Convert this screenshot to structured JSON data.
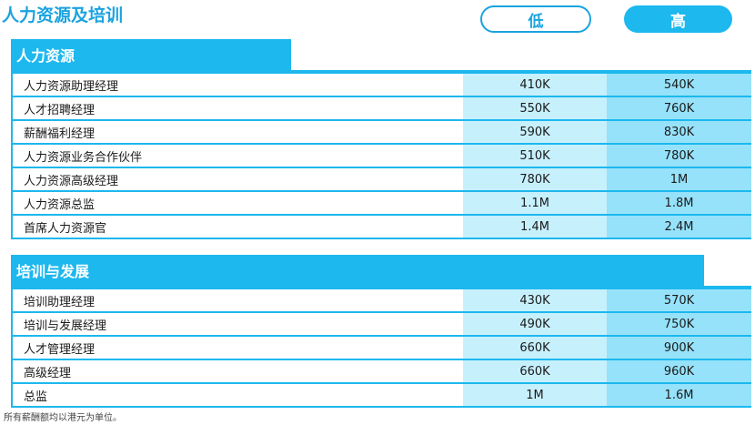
{
  "title": "人力资源及培训",
  "columns": {
    "low": "低",
    "high": "高"
  },
  "sections": [
    {
      "title": "人力资源",
      "rows": [
        {
          "role": "人力资源助理经理",
          "low": "410K",
          "high": "540K"
        },
        {
          "role": "人才招聘经理",
          "low": "550K",
          "high": "760K"
        },
        {
          "role": "薪酬福利经理",
          "low": "590K",
          "high": "830K"
        },
        {
          "role": "人力资源业务合作伙伴",
          "low": "510K",
          "high": "780K"
        },
        {
          "role": "人力资源高级经理",
          "low": "780K",
          "high": "1M"
        },
        {
          "role": "人力资源总监",
          "low": "1.1M",
          "high": "1.8M"
        },
        {
          "role": "首席人力资源官",
          "low": "1.4M",
          "high": "2.4M"
        }
      ]
    },
    {
      "title": "培训与发展",
      "rows": [
        {
          "role": "培训助理经理",
          "low": "430K",
          "high": "570K"
        },
        {
          "role": "培训与发展经理",
          "low": "490K",
          "high": "750K"
        },
        {
          "role": "人才管理经理",
          "low": "660K",
          "high": "900K"
        },
        {
          "role": "高级经理",
          "low": "660K",
          "high": "960K"
        },
        {
          "role": "总监",
          "low": "1M",
          "high": "1.6M"
        }
      ]
    }
  ],
  "footnote": "所有薪酬额均以港元为单位。",
  "colors": {
    "accent": "#1cb8ee",
    "low_fill": "#c7f0fd",
    "high_fill": "#96e2fa"
  }
}
